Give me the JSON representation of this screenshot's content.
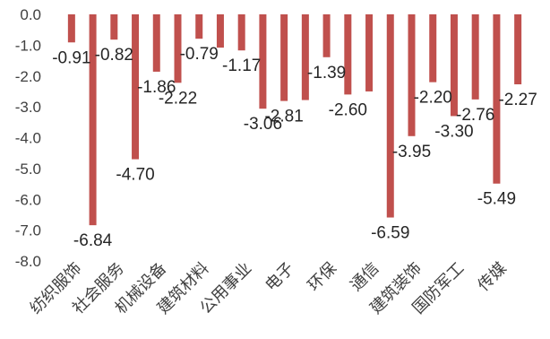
{
  "chart_data": {
    "type": "bar",
    "title": "",
    "xlabel": "",
    "ylabel": "",
    "ylim": [
      -8.0,
      0.0
    ],
    "yticks": [
      0.0,
      -1.0,
      -2.0,
      -3.0,
      -4.0,
      -5.0,
      -6.0,
      -7.0,
      -8.0
    ],
    "ytick_labels": [
      "0.0",
      "-1.0",
      "-2.0",
      "-3.0",
      "-4.0",
      "-5.0",
      "-6.0",
      "-7.0",
      "-8.0"
    ],
    "grid": false,
    "legend": "none",
    "bar_color": "#c0504d",
    "categories": [
      "纺织服饰",
      "",
      "社会服务",
      "",
      "机械设备",
      "",
      "建筑材料",
      "",
      "公用事业",
      "",
      "电子",
      "",
      "环保",
      "",
      "通信",
      "",
      "建筑装饰",
      "",
      "国防军工",
      "",
      "传媒",
      ""
    ],
    "values": [
      -0.91,
      -6.84,
      -0.82,
      -4.7,
      -1.86,
      -2.22,
      -0.79,
      -1.08,
      -1.17,
      -3.06,
      -2.81,
      -2.78,
      -1.39,
      -2.6,
      -2.5,
      -6.59,
      -3.95,
      -2.2,
      -3.3,
      -2.76,
      -5.49,
      -2.27
    ],
    "data_labels": [
      "-0.91",
      "-6.84",
      "-0.82",
      "-4.70",
      "-1.86",
      "-2.22",
      "-0.79",
      "",
      "-1.17",
      "-3.06",
      "-2.81",
      "",
      "-1.39",
      "-2.60",
      "",
      "-6.59",
      "-3.95",
      "-2.20",
      "-3.30",
      "-2.76",
      "-5.49",
      "-2.27"
    ]
  }
}
